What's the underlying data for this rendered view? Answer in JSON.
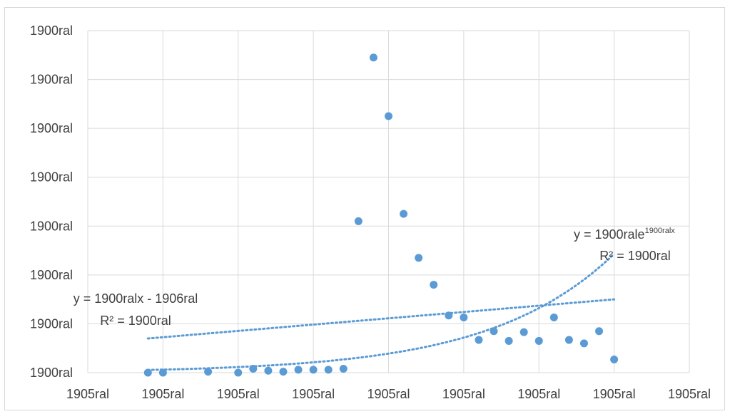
{
  "chart_data": {
    "type": "scatter",
    "xlim": [
      0,
      8
    ],
    "ylim": [
      0,
      7
    ],
    "x_tick_labels": [
      "1905ral",
      "1905ral",
      "1905ral",
      "1905ral",
      "1905ral",
      "1905ral",
      "1905ral",
      "1905ral",
      "1905ral"
    ],
    "y_tick_labels": [
      "1900ral",
      "1900ral",
      "1900ral",
      "1900ral",
      "1900ral",
      "1900ral",
      "1900ral",
      "1900ral"
    ],
    "grid": true,
    "marker_color": "#5b9bd5",
    "trendline_color": "#5b9bd5",
    "series": [
      {
        "points": [
          [
            0.8,
            0.0
          ],
          [
            1.0,
            0.0
          ],
          [
            1.6,
            0.02
          ],
          [
            2.0,
            0.0
          ],
          [
            2.2,
            0.08
          ],
          [
            2.4,
            0.04
          ],
          [
            2.6,
            0.02
          ],
          [
            2.8,
            0.06
          ],
          [
            3.0,
            0.06
          ],
          [
            3.2,
            0.06
          ],
          [
            3.4,
            0.08
          ],
          [
            3.6,
            3.1
          ],
          [
            3.8,
            6.45
          ],
          [
            4.0,
            5.25
          ],
          [
            4.2,
            3.25
          ],
          [
            4.4,
            2.35
          ],
          [
            4.6,
            1.8
          ],
          [
            4.8,
            1.17
          ],
          [
            5.0,
            1.13
          ],
          [
            5.2,
            0.67
          ],
          [
            5.4,
            0.85
          ],
          [
            5.6,
            0.65
          ],
          [
            5.8,
            0.83
          ],
          [
            6.0,
            0.65
          ],
          [
            6.2,
            1.13
          ],
          [
            6.4,
            0.67
          ],
          [
            6.6,
            0.6
          ],
          [
            6.8,
            0.85
          ],
          [
            7.0,
            0.27
          ]
        ]
      }
    ],
    "trendlines": [
      {
        "kind": "linear",
        "from": [
          0.8,
          0.7
        ],
        "to": [
          7.0,
          1.5
        ],
        "equation": "y = 1900ralx - 1906ral",
        "r2": "R² = 1900ral"
      },
      {
        "kind": "exponential",
        "a": 0.034,
        "b": 0.61,
        "x_start": 0.8,
        "x_end": 7.0,
        "equation_main": "y = 1900rale",
        "equation_sup": "1900ralx",
        "r2": "R² = 1900ral"
      }
    ]
  }
}
